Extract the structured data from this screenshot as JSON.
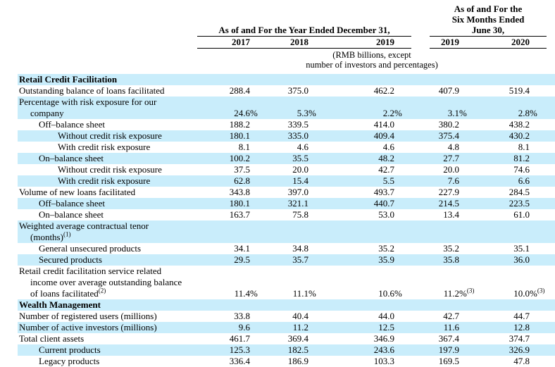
{
  "header": {
    "group1": "As of and For the Year Ended December 31,",
    "group2": "As of and For the\nSix Months Ended\nJune 30,",
    "years": [
      "2017",
      "2018",
      "2019",
      "2019",
      "2020"
    ],
    "note": "(RMB billions, except\nnumber of investors and percentages)"
  },
  "style": {
    "stripe_color": "#c9edfb"
  },
  "table": {
    "rows": [
      {
        "bg": "b",
        "bold": true,
        "indent": 0,
        "lines": [
          {
            "t": "Retail Credit Facilitation"
          }
        ],
        "cells": []
      },
      {
        "bg": "w",
        "indent": 0,
        "lines": [
          {
            "t": "Outstanding balance of loans facilitated"
          }
        ],
        "cells": [
          {
            "v": "288.4"
          },
          {
            "v": "375.0"
          },
          {
            "v": "462.2"
          },
          {
            "v": "407.9"
          },
          {
            "v": "519.4"
          }
        ]
      },
      {
        "bg": "b",
        "indent": 0,
        "lines": [
          {
            "t": "Percentage with risk exposure for our"
          },
          {
            "t": "company",
            "cont": true
          }
        ],
        "cells": [
          {
            "v": "24.6",
            "suf": "%"
          },
          {
            "v": "5.3",
            "suf": "%"
          },
          {
            "v": "2.2",
            "suf": "%"
          },
          {
            "v": "3.1",
            "suf": "%"
          },
          {
            "v": "2.8",
            "suf": "%"
          }
        ]
      },
      {
        "bg": "w",
        "indent": 1,
        "lines": [
          {
            "t": "Off–balance sheet"
          }
        ],
        "cells": [
          {
            "v": "188.2"
          },
          {
            "v": "339.5"
          },
          {
            "v": "414.0"
          },
          {
            "v": "380.2"
          },
          {
            "v": "438.2"
          }
        ]
      },
      {
        "bg": "b",
        "indent": 2,
        "lines": [
          {
            "t": "Without credit risk exposure"
          }
        ],
        "cells": [
          {
            "v": "180.1"
          },
          {
            "v": "335.0"
          },
          {
            "v": "409.4"
          },
          {
            "v": "375.4"
          },
          {
            "v": "430.2"
          }
        ]
      },
      {
        "bg": "w",
        "indent": 2,
        "lines": [
          {
            "t": "With credit risk exposure"
          }
        ],
        "cells": [
          {
            "v": "8.1"
          },
          {
            "v": "4.6"
          },
          {
            "v": "4.6"
          },
          {
            "v": "4.8"
          },
          {
            "v": "8.1"
          }
        ]
      },
      {
        "bg": "b",
        "indent": 1,
        "lines": [
          {
            "t": "On–balance sheet"
          }
        ],
        "cells": [
          {
            "v": "100.2"
          },
          {
            "v": "35.5"
          },
          {
            "v": "48.2"
          },
          {
            "v": "27.7"
          },
          {
            "v": "81.2"
          }
        ]
      },
      {
        "bg": "w",
        "indent": 2,
        "lines": [
          {
            "t": "Without credit risk exposure"
          }
        ],
        "cells": [
          {
            "v": "37.5"
          },
          {
            "v": "20.0"
          },
          {
            "v": "42.7"
          },
          {
            "v": "20.0"
          },
          {
            "v": "74.6"
          }
        ]
      },
      {
        "bg": "b",
        "indent": 2,
        "lines": [
          {
            "t": "With credit risk exposure"
          }
        ],
        "cells": [
          {
            "v": "62.8"
          },
          {
            "v": "15.4"
          },
          {
            "v": "5.5"
          },
          {
            "v": "7.6"
          },
          {
            "v": "6.6"
          }
        ]
      },
      {
        "bg": "w",
        "indent": 0,
        "lines": [
          {
            "t": "Volume of new loans facilitated"
          }
        ],
        "cells": [
          {
            "v": "343.8"
          },
          {
            "v": "397.0"
          },
          {
            "v": "493.7"
          },
          {
            "v": "227.9"
          },
          {
            "v": "284.5"
          }
        ]
      },
      {
        "bg": "b",
        "indent": 1,
        "lines": [
          {
            "t": "Off–balance sheet"
          }
        ],
        "cells": [
          {
            "v": "180.1"
          },
          {
            "v": "321.1"
          },
          {
            "v": "440.7"
          },
          {
            "v": "214.5"
          },
          {
            "v": "223.5"
          }
        ]
      },
      {
        "bg": "w",
        "indent": 1,
        "lines": [
          {
            "t": "On–balance sheet"
          }
        ],
        "cells": [
          {
            "v": "163.7"
          },
          {
            "v": "75.8"
          },
          {
            "v": "53.0"
          },
          {
            "v": "13.4"
          },
          {
            "v": "61.0"
          }
        ]
      },
      {
        "bg": "b",
        "indent": 0,
        "lines": [
          {
            "t": "Weighted average contractual tenor"
          },
          {
            "t": "(months)",
            "sup": "(1)",
            "cont": true
          }
        ],
        "cells": []
      },
      {
        "bg": "w",
        "indent": 1,
        "lines": [
          {
            "t": "General unsecured products"
          }
        ],
        "cells": [
          {
            "v": "34.1"
          },
          {
            "v": "34.8"
          },
          {
            "v": "35.2"
          },
          {
            "v": "35.2"
          },
          {
            "v": "35.1"
          }
        ]
      },
      {
        "bg": "b",
        "indent": 1,
        "lines": [
          {
            "t": "Secured products"
          }
        ],
        "cells": [
          {
            "v": "29.5"
          },
          {
            "v": "35.7"
          },
          {
            "v": "35.9"
          },
          {
            "v": "35.8"
          },
          {
            "v": "36.0"
          }
        ]
      },
      {
        "bg": "w",
        "indent": 0,
        "lines": [
          {
            "t": "Retail credit facilitation service related"
          },
          {
            "t": "income over average outstanding balance",
            "cont": true
          },
          {
            "t": "of loans facilitated",
            "sup": "(2)",
            "cont": true
          }
        ],
        "cells": [
          {
            "v": "11.4",
            "suf": "%"
          },
          {
            "v": "11.1",
            "suf": "%"
          },
          {
            "v": "10.6",
            "suf": "%"
          },
          {
            "v": "11.2",
            "suf": "%",
            "sup": "(3)"
          },
          {
            "v": "10.0",
            "suf": "%",
            "sup": "(3)"
          }
        ]
      },
      {
        "bg": "b",
        "bold": true,
        "indent": 0,
        "lines": [
          {
            "t": "Wealth Management"
          }
        ],
        "cells": []
      },
      {
        "bg": "w",
        "indent": 0,
        "lines": [
          {
            "t": "Number of registered users (millions)"
          }
        ],
        "cells": [
          {
            "v": "33.8"
          },
          {
            "v": "40.4"
          },
          {
            "v": "44.0"
          },
          {
            "v": "42.7"
          },
          {
            "v": "44.7"
          }
        ]
      },
      {
        "bg": "b",
        "indent": 0,
        "lines": [
          {
            "t": "Number of active investors (millions)"
          }
        ],
        "cells": [
          {
            "v": "9.6"
          },
          {
            "v": "11.2"
          },
          {
            "v": "12.5"
          },
          {
            "v": "11.6"
          },
          {
            "v": "12.8"
          }
        ]
      },
      {
        "bg": "w",
        "indent": 0,
        "lines": [
          {
            "t": "Total client assets"
          }
        ],
        "cells": [
          {
            "v": "461.7"
          },
          {
            "v": "369.4"
          },
          {
            "v": "346.9"
          },
          {
            "v": "367.4"
          },
          {
            "v": "374.7"
          }
        ]
      },
      {
        "bg": "b",
        "indent": 1,
        "lines": [
          {
            "t": "Current products"
          }
        ],
        "cells": [
          {
            "v": "125.3"
          },
          {
            "v": "182.5"
          },
          {
            "v": "243.6"
          },
          {
            "v": "197.9"
          },
          {
            "v": "326.9"
          }
        ]
      },
      {
        "bg": "w",
        "indent": 1,
        "lines": [
          {
            "t": "Legacy products"
          }
        ],
        "cells": [
          {
            "v": "336.4"
          },
          {
            "v": "186.9"
          },
          {
            "v": "103.3"
          },
          {
            "v": "169.5"
          },
          {
            "v": "47.8"
          }
        ]
      }
    ]
  }
}
